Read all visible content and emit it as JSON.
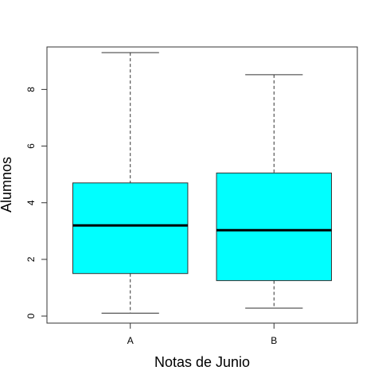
{
  "chart_data": {
    "type": "boxplot",
    "title": "",
    "xlabel": "Notas de Junio",
    "ylabel": "Alumnos",
    "categories": [
      "A",
      "B"
    ],
    "ylim": [
      -0.25,
      9.5
    ],
    "yticks": [
      0,
      2,
      4,
      6,
      8
    ],
    "grid": false,
    "box_fill": "#00FFFF",
    "series": [
      {
        "category": "A",
        "whisker_low": 0.1,
        "q1": 1.5,
        "median": 3.2,
        "q3": 4.7,
        "whisker_high": 9.3
      },
      {
        "category": "B",
        "whisker_low": 0.28,
        "q1": 1.25,
        "median": 3.03,
        "q3": 5.05,
        "whisker_high": 8.52
      }
    ]
  }
}
